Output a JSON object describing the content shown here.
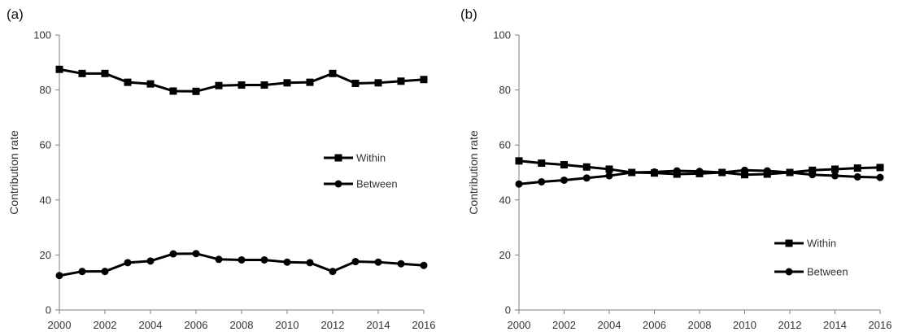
{
  "chart_data": [
    {
      "type": "line",
      "panel_label": "(a)",
      "ylabel": "Contribution rate",
      "xlabel": "",
      "ylim": [
        0,
        100
      ],
      "yticks": [
        0,
        20,
        40,
        60,
        80,
        100
      ],
      "xticks": [
        2000,
        2002,
        2004,
        2006,
        2008,
        2010,
        2012,
        2014,
        2016
      ],
      "x": [
        2000,
        2001,
        2002,
        2003,
        2004,
        2005,
        2006,
        2007,
        2008,
        2009,
        2010,
        2011,
        2012,
        2013,
        2014,
        2015,
        2016
      ],
      "grid": false,
      "legend_position": "right-middle",
      "series": [
        {
          "name": "Within",
          "marker": "square",
          "color": "#000000",
          "values": [
            87.5,
            86.0,
            86.0,
            82.8,
            82.2,
            79.6,
            79.5,
            81.6,
            81.8,
            81.8,
            82.6,
            82.8,
            86.0,
            82.4,
            82.6,
            83.2,
            83.8
          ]
        },
        {
          "name": "Between",
          "marker": "circle",
          "color": "#000000",
          "values": [
            12.5,
            14.0,
            14.0,
            17.2,
            17.8,
            20.4,
            20.5,
            18.4,
            18.2,
            18.2,
            17.4,
            17.2,
            14.0,
            17.6,
            17.4,
            16.8,
            16.2
          ]
        }
      ]
    },
    {
      "type": "line",
      "panel_label": "(b)",
      "ylabel": "Contribution rate",
      "xlabel": "",
      "ylim": [
        0,
        100
      ],
      "yticks": [
        0,
        20,
        40,
        60,
        80,
        100
      ],
      "xticks": [
        2000,
        2002,
        2004,
        2006,
        2008,
        2010,
        2012,
        2014,
        2016
      ],
      "x": [
        2000,
        2001,
        2002,
        2003,
        2004,
        2005,
        2006,
        2007,
        2008,
        2009,
        2010,
        2011,
        2012,
        2013,
        2014,
        2015,
        2016
      ],
      "grid": false,
      "legend_position": "bottom-right",
      "series": [
        {
          "name": "Within",
          "marker": "square",
          "color": "#000000",
          "values": [
            54.2,
            53.4,
            52.8,
            52.0,
            51.2,
            50.0,
            49.8,
            49.4,
            49.6,
            50.0,
            49.2,
            49.4,
            50.0,
            50.8,
            51.2,
            51.6,
            51.8
          ]
        },
        {
          "name": "Between",
          "marker": "circle",
          "color": "#000000",
          "values": [
            45.8,
            46.6,
            47.2,
            48.0,
            48.8,
            50.0,
            50.2,
            50.6,
            50.4,
            50.0,
            50.8,
            50.6,
            50.0,
            49.2,
            48.8,
            48.4,
            48.2
          ]
        }
      ]
    }
  ]
}
